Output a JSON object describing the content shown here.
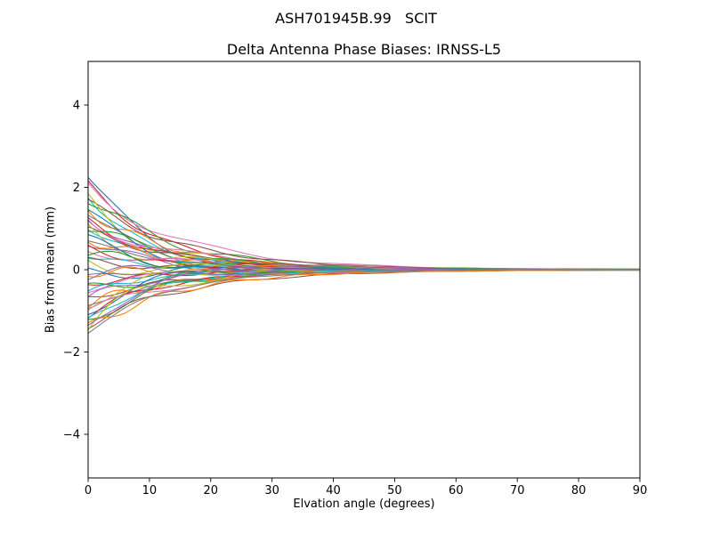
{
  "figure": {
    "suptitle": "ASH701945B.99   SCIT",
    "title": "Delta Antenna Phase Biases: IRNSS-L5",
    "xlabel": "Elvation angle (degrees)",
    "ylabel": "Bias from mean (mm)"
  },
  "chart_data": {
    "type": "line",
    "suptitle": "ASH701945B.99   SCIT",
    "title": "Delta Antenna Phase Biases: IRNSS-L5",
    "xlabel": "Elvation angle (degrees)",
    "ylabel": "Bias from mean (mm)",
    "xlim": [
      0,
      90
    ],
    "ylim": [
      -5.06,
      5.06
    ],
    "xtick_values": [
      0,
      10,
      20,
      30,
      40,
      50,
      60,
      70,
      80,
      90
    ],
    "xtick_labels": [
      "0",
      "10",
      "20",
      "30",
      "40",
      "50",
      "60",
      "70",
      "80",
      "90"
    ],
    "ytick_values": [
      -4,
      -2,
      0,
      2,
      4
    ],
    "ytick_labels": [
      "−4",
      "−2",
      "0",
      "2",
      "4"
    ],
    "grid": false,
    "legend": null,
    "description": "Many per-satellite phase-bias curves fan out at low elevation (about -1.5 mm to +2.2 mm at 0 degrees) and converge to 0 mm by 90 degrees.",
    "model": "y(x) = y0*exp(-x/tau) + resid*exp(-x/60) + amp*sin(freq*x + phase)*exp(-x/18)",
    "x_sampling": {
      "start": 0,
      "end": 90,
      "step": 1
    },
    "series_format": [
      "y0",
      "tau",
      "resid",
      "amp",
      "freq",
      "phase",
      "color_index"
    ],
    "palette": [
      "#1f77b4",
      "#ff7f0e",
      "#2ca02c",
      "#d62728",
      "#9467bd",
      "#8c564b",
      "#e377c2",
      "#7f7f7f",
      "#bcbd22",
      "#17becf"
    ],
    "series": [
      [
        2.2,
        9,
        0.04,
        0.25,
        0.3,
        0.0,
        0
      ],
      [
        2.1,
        12,
        -0.03,
        0.1,
        0.45,
        1.3,
        3
      ],
      [
        2.0,
        15,
        0.02,
        0.18,
        0.25,
        2.6,
        6
      ],
      [
        1.85,
        10,
        -0.05,
        0.08,
        0.5,
        3.9,
        9
      ],
      [
        1.75,
        13,
        0.05,
        0.22,
        0.35,
        5.2,
        2
      ],
      [
        1.65,
        16,
        -0.02,
        0.12,
        0.4,
        0.7,
        5
      ],
      [
        1.55,
        11,
        0.03,
        0.3,
        0.28,
        2.0,
        8
      ],
      [
        1.5,
        14,
        -0.04,
        0.15,
        0.55,
        3.3,
        1
      ],
      [
        1.4,
        8,
        0.01,
        0.2,
        0.33,
        4.6,
        4
      ],
      [
        1.35,
        12.5,
        -0.01,
        0.05,
        0.42,
        5.9,
        7
      ],
      [
        1.3,
        9,
        0.04,
        0.25,
        0.3,
        0.5,
        0
      ],
      [
        1.2,
        12,
        -0.03,
        0.1,
        0.45,
        1.8,
        3
      ],
      [
        1.15,
        15,
        0.02,
        0.18,
        0.25,
        3.1,
        6
      ],
      [
        1.1,
        10,
        -0.05,
        0.08,
        0.5,
        4.4,
        9
      ],
      [
        1.0,
        13,
        0.05,
        0.22,
        0.35,
        5.7,
        2
      ],
      [
        0.95,
        16,
        -0.02,
        0.12,
        0.4,
        1.2,
        5
      ],
      [
        0.9,
        11,
        0.03,
        0.3,
        0.28,
        2.5,
        8
      ],
      [
        0.8,
        14,
        -0.04,
        0.15,
        0.55,
        3.8,
        1
      ],
      [
        0.75,
        8,
        0.01,
        0.2,
        0.33,
        5.1,
        4
      ],
      [
        0.7,
        12.5,
        -0.01,
        0.05,
        0.42,
        0.2,
        7
      ],
      [
        0.6,
        9,
        0.04,
        0.25,
        0.3,
        1.0,
        0
      ],
      [
        0.55,
        12,
        -0.03,
        0.1,
        0.45,
        2.3,
        3
      ],
      [
        0.5,
        15,
        0.02,
        0.18,
        0.25,
        3.6,
        6
      ],
      [
        0.4,
        10,
        -0.05,
        0.08,
        0.5,
        4.9,
        9
      ],
      [
        0.3,
        13,
        0.05,
        0.22,
        0.35,
        0.0,
        2
      ],
      [
        0.2,
        16,
        -0.02,
        0.12,
        0.4,
        1.5,
        5
      ],
      [
        0.1,
        11,
        0.03,
        0.3,
        0.28,
        2.8,
        8
      ],
      [
        0.0,
        14,
        -0.04,
        0.15,
        0.55,
        4.1,
        1
      ],
      [
        -0.1,
        8,
        0.01,
        0.2,
        0.33,
        5.4,
        4
      ],
      [
        -0.15,
        12.5,
        -0.01,
        0.05,
        0.42,
        0.9,
        7
      ],
      [
        -0.2,
        9,
        0.04,
        0.25,
        0.3,
        2.2,
        0
      ],
      [
        -0.3,
        12,
        -0.03,
        0.1,
        0.45,
        3.5,
        3
      ],
      [
        -0.4,
        15,
        0.02,
        0.18,
        0.25,
        4.8,
        6
      ],
      [
        -0.5,
        10,
        -0.05,
        0.08,
        0.5,
        0.4,
        9
      ],
      [
        -0.6,
        13,
        0.05,
        0.22,
        0.35,
        1.7,
        2
      ],
      [
        -0.65,
        16,
        -0.02,
        0.12,
        0.4,
        3.0,
        5
      ],
      [
        -0.7,
        11,
        0.03,
        0.3,
        0.28,
        4.3,
        8
      ],
      [
        -0.8,
        14,
        -0.04,
        0.15,
        0.55,
        5.6,
        1
      ],
      [
        -0.85,
        8,
        0.01,
        0.2,
        0.33,
        1.1,
        4
      ],
      [
        -0.9,
        12.5,
        -0.01,
        0.05,
        0.42,
        2.4,
        7
      ],
      [
        -1.0,
        9,
        0.04,
        0.25,
        0.3,
        3.7,
        0
      ],
      [
        -1.05,
        12,
        -0.03,
        0.1,
        0.45,
        5.0,
        3
      ],
      [
        -1.1,
        15,
        0.02,
        0.18,
        0.25,
        0.6,
        6
      ],
      [
        -1.2,
        10,
        -0.05,
        0.08,
        0.5,
        1.9,
        9
      ],
      [
        -1.25,
        13,
        0.05,
        0.22,
        0.35,
        3.2,
        2
      ],
      [
        -1.3,
        16,
        -0.02,
        0.12,
        0.4,
        4.5,
        5
      ],
      [
        -1.35,
        11,
        0.03,
        0.3,
        0.28,
        5.8,
        8
      ],
      [
        -1.4,
        14,
        -0.04,
        0.15,
        0.55,
        1.4,
        1
      ],
      [
        -1.45,
        8,
        0.01,
        0.2,
        0.33,
        2.7,
        4
      ],
      [
        -1.5,
        12.5,
        -0.01,
        0.05,
        0.42,
        4.0,
        7
      ]
    ]
  }
}
